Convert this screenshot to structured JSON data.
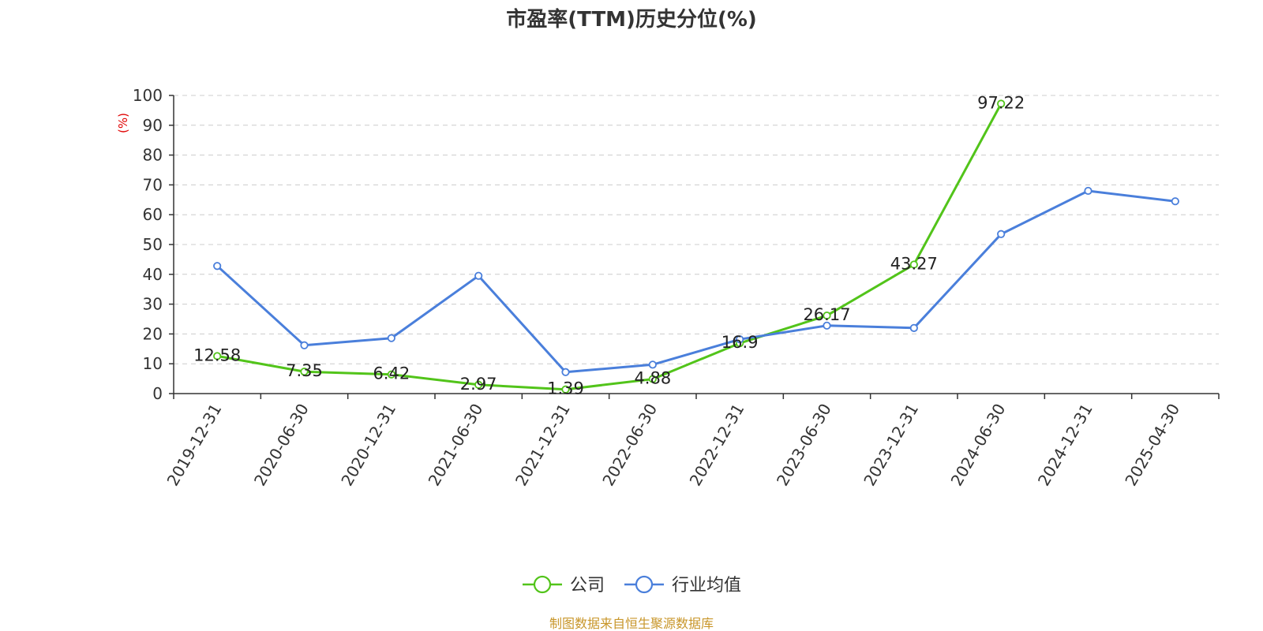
{
  "chart_data": {
    "type": "line",
    "title": "市盈率(TTM)历史分位(%)",
    "ylabel": "(%)",
    "xlabel": "",
    "ylim": [
      0,
      100
    ],
    "yticks": [
      0,
      10,
      20,
      30,
      40,
      50,
      60,
      70,
      80,
      90,
      100
    ],
    "grid": true,
    "legend_position": "bottom",
    "categories": [
      "2019-12-31",
      "2020-06-30",
      "2020-12-31",
      "2021-06-30",
      "2021-12-31",
      "2022-06-30",
      "2022-12-31",
      "2023-06-30",
      "2023-12-31",
      "2024-06-30",
      "2024-12-31",
      "2025-04-30"
    ],
    "series": [
      {
        "name": "公司",
        "color": "#52c41a",
        "values": [
          12.58,
          7.35,
          6.42,
          2.97,
          1.39,
          4.88,
          16.9,
          26.17,
          43.27,
          97.22,
          null,
          null
        ],
        "show_labels": true
      },
      {
        "name": "行业均值",
        "color": "#4a7fdb",
        "values": [
          42.8,
          16.2,
          18.6,
          39.5,
          7.2,
          9.7,
          18.2,
          22.8,
          22.0,
          53.5,
          68.0,
          64.5
        ],
        "show_labels": false
      }
    ],
    "source": "制图数据来自恒生聚源数据库"
  },
  "colors": {
    "axis": "#333333",
    "grid": "#cccccc",
    "unit_label": "#e00000",
    "source_text": "#c8962a"
  }
}
